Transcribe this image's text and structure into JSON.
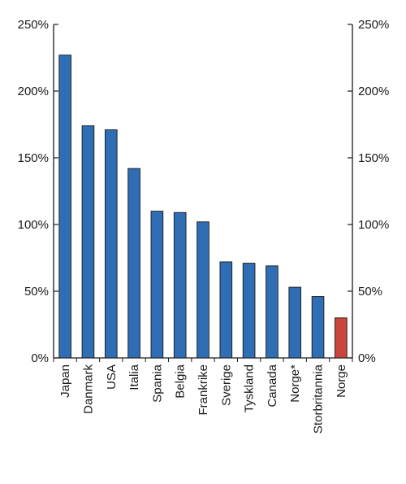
{
  "chart_data": {
    "type": "bar",
    "title": "",
    "xlabel": "",
    "ylabel": "",
    "y_unit": "%",
    "ylim": [
      0,
      250
    ],
    "yticks": [
      0,
      50,
      100,
      150,
      200,
      250
    ],
    "ytick_labels": [
      "0%",
      "50%",
      "100%",
      "150%",
      "200%",
      "250%"
    ],
    "secondary_yticks_mirrored": true,
    "grid": false,
    "legend": "none",
    "categories": [
      "Japan",
      "Danmark",
      "USA",
      "Italia",
      "Spania",
      "Belgia",
      "Frankrike",
      "Sverige",
      "Tyskland",
      "Canada",
      "Norge*",
      "Storbritannia",
      "Norge"
    ],
    "values": [
      227,
      174,
      171,
      142,
      110,
      109,
      102,
      72,
      71,
      69,
      53,
      46,
      30
    ],
    "bar_colors": [
      "#2f6db5",
      "#2f6db5",
      "#2f6db5",
      "#2f6db5",
      "#2f6db5",
      "#2f6db5",
      "#2f6db5",
      "#2f6db5",
      "#2f6db5",
      "#2f6db5",
      "#2f6db5",
      "#2f6db5",
      "#c9463d"
    ]
  }
}
